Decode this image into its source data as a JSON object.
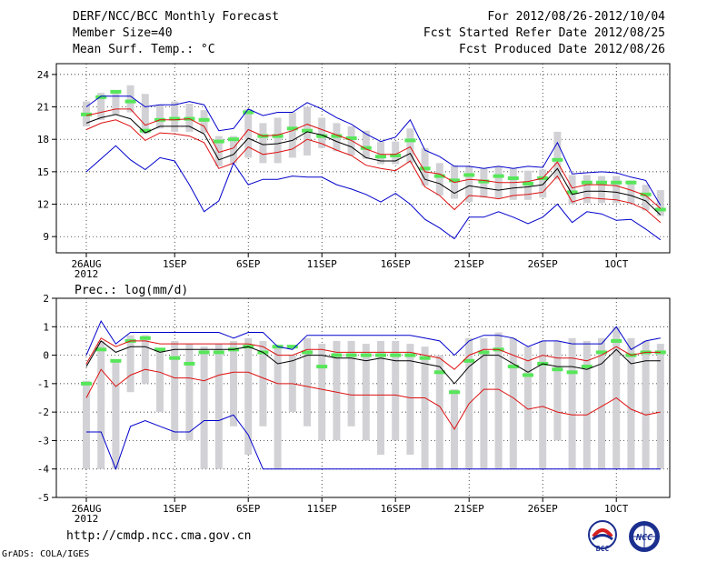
{
  "header": {
    "title": "DERF/NCC/BCC Monthly Forecast",
    "member_size": "Member Size=40",
    "variable": "Mean Surf. Temp.: °C",
    "period": "For 2012/08/26-2012/10/04",
    "fcst_started": "Fcst Started Refer Date 2012/08/25",
    "fcst_produced": "Fcst Produced Date 2012/08/26"
  },
  "footer": {
    "url": "http://cmdp.ncc.cma.gov.cn",
    "grads": "GrADS: COLA/IGES",
    "logo_bcc_text": "BCC",
    "logo_ncc_text": "NCC"
  },
  "colors": {
    "box": "#d2d2d6",
    "member": "#57e65a",
    "ensemble_mean": "#000000",
    "bounds": "#0000cc",
    "lower": "#dd1111"
  },
  "x_ticks": [
    "26AUG",
    "1SEP",
    "6SEP",
    "11SEP",
    "16SEP",
    "21SEP",
    "26SEP",
    "1OCT"
  ],
  "x_tick_index": [
    0,
    6,
    11,
    16,
    21,
    26,
    31,
    36
  ],
  "x_year": "2012",
  "chart_data": [
    {
      "type": "line",
      "title": "Mean Surf. Temp.: °C",
      "ylim": [
        7.5,
        25
      ],
      "yticks": [
        9,
        12,
        15,
        18,
        21,
        24
      ],
      "n_days": 40,
      "box_low": [
        19.2,
        19.8,
        20.3,
        20.5,
        18.5,
        19.0,
        18.7,
        18.7,
        18.6,
        15.5,
        15.8,
        16.3,
        15.8,
        15.8,
        16.3,
        16.5,
        17.2,
        16.9,
        16.5,
        16.2,
        15.7,
        15.7,
        15.8,
        13.7,
        12.8,
        12.5,
        12.2,
        12.6,
        12.5,
        12.4,
        12.4,
        12.6,
        14.3,
        12.0,
        12.1,
        12.1,
        12.1,
        12.0,
        11.4,
        10.9
      ],
      "box_high": [
        21.5,
        22.3,
        22.5,
        23.0,
        22.2,
        21.2,
        21.5,
        21.3,
        20.7,
        18.3,
        18.3,
        20.8,
        19.5,
        20.0,
        20.5,
        21.0,
        20.0,
        19.5,
        19.2,
        18.8,
        17.8,
        17.8,
        19.0,
        17.2,
        15.8,
        15.6,
        15.5,
        15.3,
        15.5,
        15.3,
        15.1,
        15.2,
        18.7,
        14.7,
        14.7,
        14.6,
        14.6,
        14.2,
        13.8,
        13.3
      ],
      "member": [
        20.3,
        21.9,
        22.4,
        21.5,
        18.8,
        19.8,
        19.9,
        19.9,
        19.8,
        17.8,
        18.0,
        20.5,
        18.3,
        18.3,
        19.0,
        18.8,
        18.3,
        18.3,
        18.1,
        17.2,
        16.4,
        16.5,
        17.9,
        15.3,
        14.6,
        14.2,
        14.7,
        14.1,
        14.6,
        14.4,
        13.9,
        14.4,
        16.1,
        13.1,
        14.0,
        14.0,
        14.0,
        14.0,
        12.9,
        11.5
      ],
      "series": [
        {
          "name": "upper",
          "color": "#0000cc",
          "values": [
            21.0,
            22.0,
            22.0,
            22.0,
            21.0,
            21.2,
            21.2,
            21.5,
            21.2,
            18.8,
            19.0,
            20.8,
            20.2,
            20.5,
            20.5,
            21.4,
            20.8,
            20.0,
            19.4,
            18.5,
            17.8,
            18.2,
            19.8,
            17.0,
            16.4,
            15.5,
            15.5,
            15.3,
            15.5,
            15.3,
            15.5,
            15.4,
            17.7,
            14.8,
            14.9,
            15.0,
            14.9,
            14.5,
            14.2,
            11.9
          ]
        },
        {
          "name": "upper-mid",
          "color": "#dd1111",
          "values": [
            20.2,
            20.5,
            20.8,
            20.8,
            19.3,
            19.8,
            19.8,
            19.9,
            19.2,
            16.8,
            17.2,
            18.9,
            18.3,
            18.4,
            18.8,
            19.4,
            18.9,
            18.4,
            17.9,
            17.1,
            16.6,
            16.6,
            17.3,
            15.0,
            14.8,
            14.0,
            14.3,
            14.2,
            14.0,
            14.0,
            14.1,
            14.4,
            15.9,
            13.5,
            13.8,
            13.8,
            13.7,
            13.3,
            12.8,
            11.6
          ]
        },
        {
          "name": "ensemble mean",
          "color": "#000000",
          "values": [
            19.5,
            20.0,
            20.3,
            19.9,
            18.6,
            19.2,
            19.2,
            19.2,
            18.5,
            16.1,
            16.6,
            18.1,
            17.5,
            17.6,
            17.9,
            18.7,
            18.4,
            17.8,
            17.3,
            16.3,
            16.0,
            16.0,
            16.7,
            14.3,
            13.9,
            13.0,
            13.7,
            13.5,
            13.3,
            13.5,
            13.6,
            13.8,
            15.3,
            12.9,
            13.2,
            13.2,
            13.1,
            12.8,
            12.3,
            11.0
          ]
        },
        {
          "name": "lower-mid",
          "color": "#dd1111",
          "values": [
            18.9,
            19.5,
            19.8,
            19.2,
            17.9,
            18.6,
            18.5,
            18.3,
            17.7,
            15.3,
            15.8,
            17.3,
            16.6,
            16.8,
            17.1,
            18.0,
            17.6,
            17.0,
            16.5,
            15.6,
            15.3,
            15.1,
            16.0,
            13.6,
            12.8,
            11.5,
            12.8,
            12.7,
            12.5,
            12.8,
            12.9,
            13.1,
            14.6,
            12.2,
            12.6,
            12.5,
            12.4,
            12.1,
            11.5,
            10.3
          ]
        },
        {
          "name": "lower",
          "color": "#0000cc",
          "values": [
            15.0,
            16.2,
            17.4,
            16.1,
            15.2,
            16.3,
            16.0,
            13.8,
            11.3,
            12.3,
            15.8,
            13.8,
            14.3,
            14.3,
            14.6,
            14.5,
            14.5,
            13.8,
            13.4,
            12.9,
            12.2,
            13.0,
            12.0,
            10.6,
            9.8,
            8.8,
            10.8,
            10.8,
            11.3,
            10.8,
            10.2,
            10.8,
            12.0,
            10.3,
            11.3,
            11.1,
            10.5,
            10.6,
            9.7,
            8.7
          ]
        }
      ]
    },
    {
      "type": "line",
      "title": "Prec.: log(mm/d)",
      "ylim": [
        -5,
        2
      ],
      "yticks": [
        -5,
        -4,
        -3,
        -2,
        -1,
        0,
        1,
        2
      ],
      "n_days": 40,
      "box_low": [
        -4.0,
        -4.0,
        -4.0,
        -1.3,
        -1.0,
        -2.0,
        -3.0,
        -3.0,
        -4.0,
        -4.0,
        -2.5,
        -3.5,
        -2.5,
        -4.0,
        -2.0,
        -2.5,
        -3.0,
        -3.0,
        -2.5,
        -3.0,
        -3.5,
        -3.0,
        -3.5,
        -4.0,
        -4.0,
        -4.0,
        -4.0,
        -4.0,
        -4.0,
        -4.0,
        -3.0,
        -4.0,
        -3.0,
        -4.0,
        -4.0,
        -4.0,
        -4.0,
        -4.0,
        -4.0,
        -4.0
      ],
      "box_high": [
        -0.9,
        0.5,
        -0.2,
        0.7,
        0.7,
        0.2,
        0.5,
        0.4,
        0.3,
        0.4,
        0.5,
        0.6,
        0.5,
        0.3,
        0.0,
        0.6,
        0.4,
        0.5,
        0.5,
        0.4,
        0.5,
        0.5,
        0.4,
        0.3,
        0.0,
        -1.2,
        0.6,
        0.6,
        0.8,
        0.6,
        0.3,
        0.5,
        0.5,
        0.6,
        0.5,
        0.6,
        1.0,
        0.6,
        0.5,
        0.4
      ],
      "member": [
        -1.0,
        0.2,
        -0.2,
        0.5,
        0.6,
        0.2,
        -0.1,
        -0.3,
        0.1,
        0.1,
        0.2,
        0.3,
        0.1,
        0.3,
        0.3,
        0.1,
        -0.4,
        0.0,
        0.0,
        0.0,
        0.0,
        0.0,
        0.0,
        -0.1,
        -0.6,
        -1.3,
        -0.2,
        0.1,
        0.2,
        -0.4,
        -0.7,
        -0.3,
        -0.5,
        -0.6,
        -0.4,
        0.1,
        0.5,
        0.0,
        0.1,
        0.1
      ],
      "series": [
        {
          "name": "upper",
          "color": "#0000cc",
          "values": [
            0.0,
            1.2,
            0.4,
            0.8,
            0.8,
            0.8,
            0.8,
            0.8,
            0.8,
            0.8,
            0.6,
            0.8,
            0.8,
            0.3,
            0.2,
            0.7,
            0.7,
            0.7,
            0.7,
            0.7,
            0.7,
            0.7,
            0.7,
            0.6,
            0.5,
            0.0,
            0.5,
            0.7,
            0.7,
            0.6,
            0.3,
            0.5,
            0.5,
            0.4,
            0.4,
            0.4,
            1.0,
            0.2,
            0.5,
            0.6
          ]
        },
        {
          "name": "upper-mid",
          "color": "#dd1111",
          "values": [
            -0.3,
            0.6,
            0.3,
            0.5,
            0.5,
            0.4,
            0.4,
            0.4,
            0.4,
            0.4,
            0.4,
            0.4,
            0.3,
            0.0,
            0.0,
            0.2,
            0.2,
            0.1,
            0.1,
            0.1,
            0.1,
            0.1,
            0.1,
            0.0,
            -0.1,
            -0.5,
            0.0,
            0.2,
            0.2,
            0.0,
            -0.2,
            0.0,
            -0.1,
            -0.1,
            -0.2,
            0.0,
            0.3,
            0.0,
            0.1,
            0.1
          ]
        },
        {
          "name": "ensemble mean",
          "color": "#000000",
          "values": [
            -0.4,
            0.5,
            0.1,
            0.3,
            0.3,
            0.1,
            0.2,
            0.2,
            0.2,
            0.2,
            0.2,
            0.3,
            0.1,
            -0.3,
            -0.2,
            0.0,
            0.0,
            -0.1,
            -0.1,
            -0.2,
            -0.1,
            -0.2,
            -0.2,
            -0.3,
            -0.4,
            -1.0,
            -0.4,
            0.0,
            0.0,
            -0.3,
            -0.6,
            -0.3,
            -0.4,
            -0.4,
            -0.5,
            -0.3,
            0.2,
            -0.3,
            -0.2,
            -0.2
          ]
        },
        {
          "name": "lower-mid",
          "color": "#dd1111",
          "values": [
            -1.5,
            -0.5,
            -1.1,
            -0.7,
            -0.5,
            -0.6,
            -0.8,
            -0.8,
            -0.9,
            -0.7,
            -0.6,
            -0.6,
            -0.8,
            -1.0,
            -1.0,
            -1.1,
            -1.2,
            -1.3,
            -1.4,
            -1.4,
            -1.4,
            -1.4,
            -1.5,
            -1.5,
            -1.8,
            -2.6,
            -1.7,
            -1.2,
            -1.2,
            -1.5,
            -1.9,
            -1.8,
            -2.0,
            -2.1,
            -2.1,
            -1.8,
            -1.5,
            -1.9,
            -2.1,
            -2.0
          ]
        },
        {
          "name": "lower",
          "color": "#0000cc",
          "values": [
            -2.7,
            -2.7,
            -4.0,
            -2.5,
            -2.3,
            -2.5,
            -2.7,
            -2.7,
            -2.3,
            -2.3,
            -2.1,
            -2.8,
            -4.0,
            -4.0,
            -4.0,
            -4.0,
            -4.0,
            -4.0,
            -4.0,
            -4.0,
            -4.0,
            -4.0,
            -4.0,
            -4.0,
            -4.0,
            -4.0,
            -4.0,
            -4.0,
            -4.0,
            -4.0,
            -4.0,
            -4.0,
            -4.0,
            -4.0,
            -4.0,
            -4.0,
            -4.0,
            -4.0,
            -4.0,
            -4.0
          ]
        }
      ]
    }
  ]
}
